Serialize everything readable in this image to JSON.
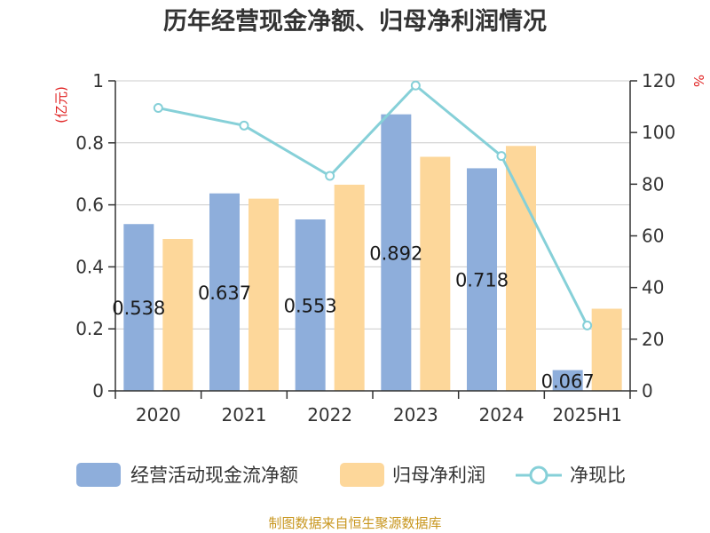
{
  "chart_data": {
    "type": "bar",
    "title": "历年经营现金净额、归母净利润情况",
    "categories": [
      "2020",
      "2021",
      "2022",
      "2023",
      "2024",
      "2025H1"
    ],
    "series": [
      {
        "name": "经营活动现金流净额",
        "type": "bar",
        "axis": "left",
        "values": [
          0.538,
          0.637,
          0.553,
          0.892,
          0.718,
          0.067
        ],
        "labels": [
          "0.538",
          "0.637",
          "0.553",
          "0.892",
          "0.718",
          "0.067"
        ],
        "color": "#8eaedb"
      },
      {
        "name": "归母净利润",
        "type": "bar",
        "axis": "left",
        "values": [
          0.49,
          0.62,
          0.665,
          0.755,
          0.79,
          0.265
        ],
        "color": "#fdd79a"
      },
      {
        "name": "净现比",
        "type": "line",
        "axis": "right",
        "values": [
          109.5,
          102.7,
          83.2,
          118.2,
          90.9,
          25.3
        ],
        "color": "#86d0d8"
      }
    ],
    "y_left": {
      "unit": "(亿元)",
      "ylim": [
        0,
        1
      ],
      "ticks": [
        "0",
        "0.2",
        "0.4",
        "0.6",
        "0.8",
        "1"
      ],
      "unit_color": "#e02020"
    },
    "y_right": {
      "unit": "%",
      "ylim": [
        0,
        120
      ],
      "ticks": [
        "0",
        "20",
        "40",
        "60",
        "80",
        "100",
        "120"
      ],
      "unit_color": "#e02020"
    },
    "grid": true,
    "legend_position": "bottom"
  },
  "source_text": "制图数据来自恒生聚源数据库",
  "source_color": "#c8961e"
}
